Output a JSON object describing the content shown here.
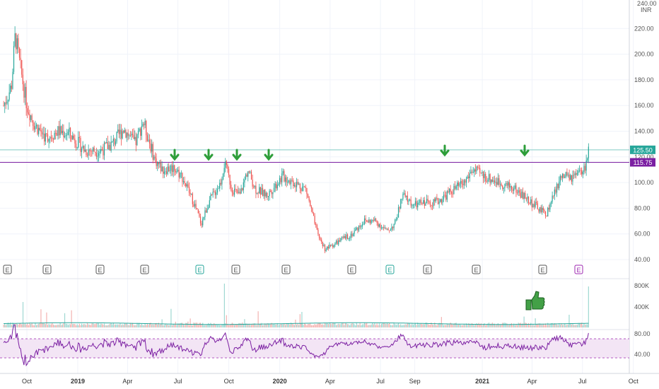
{
  "axis": {
    "currency_top": "240.00",
    "currency": "INR",
    "price_ticks": [
      "220.00",
      "200.00",
      "180.00",
      "160.00",
      "140.00",
      "120.00",
      "100.00",
      "80.00",
      "60.00",
      "40.00"
    ],
    "volume_ticks": [
      "800K",
      "400K"
    ],
    "rsi_ticks": [
      "80.00",
      "40.00"
    ],
    "time_labels": [
      {
        "label": "Oct",
        "bold": false
      },
      {
        "label": "2019",
        "bold": true
      },
      {
        "label": "Apr",
        "bold": false
      },
      {
        "label": "Jul",
        "bold": false
      },
      {
        "label": "Oct",
        "bold": false
      },
      {
        "label": "2020",
        "bold": true
      },
      {
        "label": "Apr",
        "bold": false
      },
      {
        "label": "Jul",
        "bold": false
      },
      {
        "label": "Sep",
        "bold": false
      },
      {
        "label": "2021",
        "bold": true
      },
      {
        "label": "Apr",
        "bold": false
      },
      {
        "label": "Jul",
        "bold": false
      },
      {
        "label": "Oct",
        "bold": false
      }
    ]
  },
  "price_labels": [
    {
      "value": "125.50",
      "color": "#26a69a"
    },
    {
      "value": "115.75",
      "color": "#7b1fa2"
    }
  ],
  "horizontal_lines": [
    {
      "name": "current-price-line",
      "price": 125.5,
      "color": "#80cbc4"
    },
    {
      "name": "resistance-line",
      "price": 115.75,
      "color": "#7b1fa2"
    }
  ],
  "earnings_markers": [
    "E",
    "E",
    "E",
    "E",
    "E",
    "E",
    "E",
    "E",
    "E",
    "E",
    "E",
    "E",
    "E"
  ],
  "resistance_arrows": 6,
  "colors": {
    "up": "#26a69a",
    "down": "#ef5350",
    "rsi_line": "#7b1fa2",
    "rsi_band": "#f3e5f5",
    "arrow": "#2e9e3a",
    "thumb": "#43a047"
  },
  "chart_data": {
    "type": "candlestick",
    "price_range": [
      40,
      240
    ],
    "price_path": [
      [
        "2018-08-20",
        160
      ],
      [
        "2018-09-03",
        175
      ],
      [
        "2018-09-10",
        215
      ],
      [
        "2018-09-17",
        195
      ],
      [
        "2018-10-01",
        160
      ],
      [
        "2018-10-15",
        145
      ],
      [
        "2018-11-05",
        135
      ],
      [
        "2018-11-26",
        140
      ],
      [
        "2018-12-17",
        138
      ],
      [
        "2019-01-14",
        125
      ],
      [
        "2019-02-11",
        125
      ],
      [
        "2019-03-04",
        130
      ],
      [
        "2019-03-25",
        142
      ],
      [
        "2019-04-15",
        130
      ],
      [
        "2019-04-29",
        148
      ],
      [
        "2019-05-20",
        118
      ],
      [
        "2019-06-03",
        110
      ],
      [
        "2019-06-24",
        112
      ],
      [
        "2019-07-08",
        105
      ],
      [
        "2019-07-29",
        85
      ],
      [
        "2019-08-12",
        68
      ],
      [
        "2019-08-26",
        85
      ],
      [
        "2019-09-16",
        100
      ],
      [
        "2019-09-23",
        115
      ],
      [
        "2019-10-07",
        95
      ],
      [
        "2019-10-21",
        90
      ],
      [
        "2019-11-04",
        110
      ],
      [
        "2019-11-18",
        95
      ],
      [
        "2019-12-09",
        90
      ],
      [
        "2020-01-06",
        105
      ],
      [
        "2020-01-27",
        100
      ],
      [
        "2020-02-17",
        95
      ],
      [
        "2020-03-09",
        60
      ],
      [
        "2020-03-23",
        48
      ],
      [
        "2020-04-20",
        55
      ],
      [
        "2020-05-11",
        60
      ],
      [
        "2020-06-01",
        70
      ],
      [
        "2020-06-22",
        70
      ],
      [
        "2020-07-13",
        62
      ],
      [
        "2020-07-27",
        68
      ],
      [
        "2020-08-10",
        90
      ],
      [
        "2020-08-31",
        82
      ],
      [
        "2020-09-21",
        85
      ],
      [
        "2020-10-12",
        85
      ],
      [
        "2020-11-02",
        92
      ],
      [
        "2020-11-30",
        100
      ],
      [
        "2020-12-14",
        110
      ],
      [
        "2021-01-04",
        105
      ],
      [
        "2021-02-01",
        100
      ],
      [
        "2021-03-01",
        95
      ],
      [
        "2021-03-29",
        85
      ],
      [
        "2021-04-26",
        75
      ],
      [
        "2021-05-10",
        90
      ],
      [
        "2021-05-24",
        105
      ],
      [
        "2021-06-14",
        103
      ],
      [
        "2021-07-05",
        110
      ],
      [
        "2021-07-12",
        126
      ]
    ],
    "last_price": 125.5,
    "resistance_price": 115.75,
    "rsi_levels": [
      70,
      30
    ]
  }
}
